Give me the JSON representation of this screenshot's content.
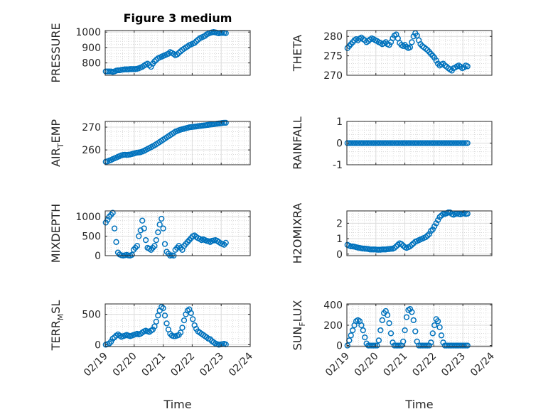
{
  "figure": {
    "title": "Figure 3 medium",
    "marker_color": "#0072BD",
    "x_ticks": [
      "02/19",
      "02/20",
      "02/21",
      "02/22",
      "02/23",
      "02/24"
    ],
    "xlabel": "Time"
  },
  "chart_data": [
    {
      "type": "scatter",
      "ylabel": "PRESSURE",
      "ylim": [
        720,
        1010
      ],
      "yticks": [
        800,
        900,
        1000
      ],
      "xlim": [
        0,
        5
      ],
      "grid": true,
      "title": "Figure 3 medium",
      "x": [
        0.02,
        0.08,
        0.14,
        0.2,
        0.26,
        0.32,
        0.38,
        0.44,
        0.5,
        0.56,
        0.62,
        0.68,
        0.74,
        0.8,
        0.86,
        0.92,
        0.98,
        1.04,
        1.1,
        1.16,
        1.22,
        1.28,
        1.34,
        1.4,
        1.46,
        1.52,
        1.58,
        1.64,
        1.7,
        1.76,
        1.82,
        1.88,
        1.94,
        2.0,
        2.06,
        2.12,
        2.18,
        2.24,
        2.3,
        2.36,
        2.42,
        2.48,
        2.54,
        2.6,
        2.66,
        2.72,
        2.78,
        2.84,
        2.9,
        2.96,
        3.02,
        3.08,
        3.14,
        3.2,
        3.26,
        3.32,
        3.38,
        3.44,
        3.5,
        3.56,
        3.62,
        3.68,
        3.74,
        3.8,
        3.86,
        3.92,
        3.98,
        4.04,
        4.1,
        4.16
      ],
      "y": [
        745,
        745,
        745,
        745,
        742,
        745,
        750,
        752,
        752,
        755,
        757,
        758,
        758,
        758,
        760,
        760,
        760,
        760,
        762,
        765,
        770,
        775,
        782,
        790,
        795,
        785,
        775,
        795,
        810,
        820,
        830,
        835,
        840,
        845,
        850,
        855,
        860,
        870,
        865,
        858,
        850,
        855,
        865,
        875,
        885,
        892,
        900,
        907,
        915,
        920,
        925,
        930,
        940,
        950,
        960,
        965,
        970,
        975,
        985,
        990,
        995,
        998,
        1000,
        998,
        995,
        992,
        995,
        995,
        995,
        993
      ]
    },
    {
      "type": "scatter",
      "ylabel": "THETA",
      "ylim": [
        270,
        281.5
      ],
      "yticks": [
        270,
        275,
        280
      ],
      "xlim": [
        0,
        5
      ],
      "grid": true,
      "x": [
        0.02,
        0.08,
        0.14,
        0.2,
        0.26,
        0.32,
        0.38,
        0.44,
        0.5,
        0.56,
        0.62,
        0.68,
        0.74,
        0.8,
        0.86,
        0.92,
        0.98,
        1.04,
        1.1,
        1.16,
        1.22,
        1.28,
        1.34,
        1.4,
        1.46,
        1.52,
        1.58,
        1.64,
        1.7,
        1.76,
        1.82,
        1.88,
        1.94,
        2.0,
        2.06,
        2.12,
        2.18,
        2.24,
        2.3,
        2.36,
        2.42,
        2.48,
        2.54,
        2.6,
        2.66,
        2.72,
        2.78,
        2.84,
        2.9,
        2.96,
        3.02,
        3.08,
        3.14,
        3.2,
        3.26,
        3.32,
        3.38,
        3.44,
        3.5,
        3.56,
        3.62,
        3.68,
        3.74,
        3.8,
        3.86,
        3.92,
        3.98,
        4.04,
        4.1,
        4.16
      ],
      "y": [
        277.0,
        277.5,
        278.0,
        278.5,
        279.0,
        279.3,
        279.0,
        279.4,
        279.7,
        279.3,
        279.0,
        278.5,
        278.8,
        279.2,
        279.5,
        279.3,
        279.0,
        278.8,
        278.5,
        278.3,
        278.0,
        278.2,
        278.5,
        278.0,
        277.8,
        278.5,
        279.5,
        280.2,
        280.5,
        279.5,
        278.3,
        277.8,
        277.5,
        277.8,
        277.3,
        277.0,
        277.2,
        278.5,
        280.0,
        280.8,
        280.2,
        279.0,
        278.0,
        277.5,
        277.2,
        276.8,
        276.5,
        276.0,
        275.5,
        275.0,
        274.5,
        273.8,
        273.0,
        272.5,
        272.8,
        273.0,
        272.5,
        272.2,
        271.8,
        271.5,
        271.2,
        271.8,
        272.0,
        272.3,
        272.5,
        272.2,
        271.8,
        272.0,
        272.5,
        272.3
      ]
    },
    {
      "type": "scatter",
      "ylabel": "AIR_TEMP",
      "ylim": [
        253.5,
        272.5
      ],
      "yticks": [
        260,
        270
      ],
      "xlim": [
        0,
        5
      ],
      "grid": true,
      "x": [
        0.02,
        0.08,
        0.14,
        0.2,
        0.26,
        0.32,
        0.38,
        0.44,
        0.5,
        0.56,
        0.62,
        0.68,
        0.74,
        0.8,
        0.86,
        0.92,
        0.98,
        1.04,
        1.1,
        1.16,
        1.22,
        1.28,
        1.34,
        1.4,
        1.46,
        1.52,
        1.58,
        1.64,
        1.7,
        1.76,
        1.82,
        1.88,
        1.94,
        2.0,
        2.06,
        2.12,
        2.18,
        2.24,
        2.3,
        2.36,
        2.42,
        2.48,
        2.54,
        2.6,
        2.66,
        2.72,
        2.78,
        2.84,
        2.9,
        2.96,
        3.02,
        3.08,
        3.14,
        3.2,
        3.26,
        3.32,
        3.38,
        3.44,
        3.5,
        3.56,
        3.62,
        3.68,
        3.74,
        3.8,
        3.86,
        3.92,
        3.98,
        4.04,
        4.1,
        4.16
      ],
      "y": [
        254.8,
        255.0,
        255.3,
        255.6,
        256.0,
        256.3,
        256.6,
        257.0,
        257.3,
        257.6,
        257.8,
        257.9,
        257.8,
        257.9,
        258.0,
        258.2,
        258.4,
        258.6,
        258.8,
        258.9,
        259.0,
        259.3,
        259.6,
        260.0,
        260.4,
        260.8,
        261.2,
        261.6,
        262.0,
        262.5,
        263.0,
        263.5,
        264.0,
        264.5,
        265.0,
        265.5,
        266.0,
        266.5,
        267.0,
        267.5,
        268.0,
        268.3,
        268.6,
        268.9,
        269.1,
        269.3,
        269.5,
        269.7,
        269.9,
        270.0,
        270.1,
        270.2,
        270.3,
        270.4,
        270.5,
        270.6,
        270.7,
        270.8,
        270.9,
        271.0,
        271.1,
        271.2,
        271.3,
        271.4,
        271.5,
        271.6,
        271.7,
        271.8,
        271.9,
        271.9
      ]
    },
    {
      "type": "scatter",
      "ylabel": "RAINFALL",
      "ylim": [
        -1,
        1
      ],
      "yticks": [
        -1,
        0,
        1
      ],
      "xlim": [
        0,
        5
      ],
      "grid": true,
      "x": [
        0.02,
        0.08,
        0.14,
        0.2,
        0.26,
        0.32,
        0.38,
        0.44,
        0.5,
        0.56,
        0.62,
        0.68,
        0.74,
        0.8,
        0.86,
        0.92,
        0.98,
        1.04,
        1.1,
        1.16,
        1.22,
        1.28,
        1.34,
        1.4,
        1.46,
        1.52,
        1.58,
        1.64,
        1.7,
        1.76,
        1.82,
        1.88,
        1.94,
        2.0,
        2.06,
        2.12,
        2.18,
        2.24,
        2.3,
        2.36,
        2.42,
        2.48,
        2.54,
        2.6,
        2.66,
        2.72,
        2.78,
        2.84,
        2.9,
        2.96,
        3.02,
        3.08,
        3.14,
        3.2,
        3.26,
        3.32,
        3.38,
        3.44,
        3.5,
        3.56,
        3.62,
        3.68,
        3.74,
        3.8,
        3.86,
        3.92,
        3.98,
        4.04,
        4.1,
        4.16
      ],
      "y": [
        0,
        0,
        0,
        0,
        0,
        0,
        0,
        0,
        0,
        0,
        0,
        0,
        0,
        0,
        0,
        0,
        0,
        0,
        0,
        0,
        0,
        0,
        0,
        0,
        0,
        0,
        0,
        0,
        0,
        0,
        0,
        0,
        0,
        0,
        0,
        0,
        0,
        0,
        0,
        0,
        0,
        0,
        0,
        0,
        0,
        0,
        0,
        0,
        0,
        0,
        0,
        0,
        0,
        0,
        0,
        0,
        0,
        0,
        0,
        0,
        0,
        0,
        0,
        0,
        0,
        0,
        0,
        0,
        0,
        0
      ]
    },
    {
      "type": "scatter",
      "ylabel": "MIXDEPTH",
      "ylim": [
        0,
        1150
      ],
      "yticks": [
        0,
        500,
        1000
      ],
      "xlim": [
        0,
        5
      ],
      "grid": true,
      "x": [
        0.02,
        0.08,
        0.14,
        0.2,
        0.26,
        0.32,
        0.38,
        0.44,
        0.5,
        0.56,
        0.62,
        0.68,
        0.74,
        0.8,
        0.86,
        0.92,
        0.98,
        1.04,
        1.1,
        1.16,
        1.22,
        1.28,
        1.34,
        1.4,
        1.46,
        1.52,
        1.58,
        1.64,
        1.7,
        1.76,
        1.82,
        1.88,
        1.94,
        2.0,
        2.06,
        2.12,
        2.18,
        2.24,
        2.3,
        2.36,
        2.42,
        2.48,
        2.54,
        2.6,
        2.66,
        2.72,
        2.78,
        2.84,
        2.9,
        2.96,
        3.02,
        3.08,
        3.14,
        3.2,
        3.26,
        3.32,
        3.38,
        3.44,
        3.5,
        3.56,
        3.62,
        3.68,
        3.74,
        3.8,
        3.86,
        3.92,
        3.98,
        4.04,
        4.1,
        4.16
      ],
      "y": [
        850,
        920,
        1000,
        1050,
        1100,
        700,
        350,
        80,
        30,
        10,
        0,
        10,
        20,
        5,
        0,
        20,
        150,
        200,
        250,
        500,
        650,
        900,
        700,
        400,
        200,
        180,
        150,
        200,
        250,
        400,
        600,
        800,
        950,
        700,
        300,
        100,
        50,
        0,
        10,
        0,
        150,
        200,
        250,
        200,
        150,
        250,
        300,
        350,
        400,
        450,
        500,
        520,
        480,
        450,
        430,
        400,
        420,
        400,
        380,
        370,
        350,
        380,
        390,
        400,
        380,
        350,
        320,
        300,
        280,
        330
      ]
    },
    {
      "type": "scatter",
      "ylabel": "H2OMIXRA",
      "ylim": [
        -0.1,
        2.8
      ],
      "yticks": [
        0,
        1,
        2
      ],
      "xlim": [
        0,
        5
      ],
      "grid": true,
      "x": [
        0.02,
        0.08,
        0.14,
        0.2,
        0.26,
        0.32,
        0.38,
        0.44,
        0.5,
        0.56,
        0.62,
        0.68,
        0.74,
        0.8,
        0.86,
        0.92,
        0.98,
        1.04,
        1.1,
        1.16,
        1.22,
        1.28,
        1.34,
        1.4,
        1.46,
        1.52,
        1.58,
        1.64,
        1.7,
        1.76,
        1.82,
        1.88,
        1.94,
        2.0,
        2.06,
        2.12,
        2.18,
        2.24,
        2.3,
        2.36,
        2.42,
        2.48,
        2.54,
        2.6,
        2.66,
        2.72,
        2.78,
        2.84,
        2.9,
        2.96,
        3.02,
        3.08,
        3.14,
        3.2,
        3.26,
        3.32,
        3.38,
        3.44,
        3.5,
        3.56,
        3.62,
        3.68,
        3.74,
        3.8,
        3.86,
        3.92,
        3.98,
        4.04,
        4.1,
        4.16
      ],
      "y": [
        0.6,
        0.55,
        0.5,
        0.5,
        0.48,
        0.45,
        0.42,
        0.4,
        0.38,
        0.36,
        0.35,
        0.34,
        0.33,
        0.3,
        0.3,
        0.3,
        0.3,
        0.28,
        0.28,
        0.28,
        0.3,
        0.3,
        0.3,
        0.32,
        0.33,
        0.34,
        0.35,
        0.4,
        0.5,
        0.6,
        0.7,
        0.65,
        0.55,
        0.45,
        0.4,
        0.45,
        0.5,
        0.6,
        0.7,
        0.8,
        0.85,
        0.9,
        0.95,
        1.0,
        1.05,
        1.1,
        1.2,
        1.3,
        1.5,
        1.6,
        1.8,
        2.0,
        2.2,
        2.4,
        2.5,
        2.6,
        2.6,
        2.65,
        2.7,
        2.7,
        2.6,
        2.55,
        2.6,
        2.62,
        2.6,
        2.58,
        2.62,
        2.65,
        2.6,
        2.62
      ]
    },
    {
      "type": "scatter",
      "ylabel": "TERR_MSL",
      "ylim": [
        -30,
        670
      ],
      "yticks": [
        0,
        500
      ],
      "xlim": [
        0,
        5
      ],
      "grid": true,
      "x": [
        0.02,
        0.08,
        0.14,
        0.2,
        0.26,
        0.32,
        0.38,
        0.44,
        0.5,
        0.56,
        0.62,
        0.68,
        0.74,
        0.8,
        0.86,
        0.92,
        0.98,
        1.04,
        1.1,
        1.16,
        1.22,
        1.28,
        1.34,
        1.4,
        1.46,
        1.52,
        1.58,
        1.64,
        1.7,
        1.76,
        1.82,
        1.88,
        1.94,
        2.0,
        2.06,
        2.12,
        2.18,
        2.24,
        2.3,
        2.36,
        2.42,
        2.48,
        2.54,
        2.6,
        2.66,
        2.72,
        2.78,
        2.84,
        2.9,
        2.96,
        3.02,
        3.08,
        3.14,
        3.2,
        3.26,
        3.32,
        3.38,
        3.44,
        3.5,
        3.56,
        3.62,
        3.68,
        3.74,
        3.8,
        3.86,
        3.92,
        3.98,
        4.04,
        4.1,
        4.16
      ],
      "y": [
        0,
        10,
        20,
        50,
        100,
        120,
        150,
        170,
        150,
        130,
        140,
        150,
        160,
        150,
        140,
        150,
        160,
        170,
        180,
        170,
        180,
        200,
        220,
        230,
        220,
        210,
        230,
        250,
        300,
        380,
        480,
        560,
        620,
        600,
        480,
        350,
        250,
        180,
        150,
        140,
        140,
        150,
        160,
        200,
        280,
        400,
        500,
        560,
        580,
        520,
        420,
        320,
        260,
        220,
        200,
        180,
        160,
        140,
        120,
        100,
        90,
        60,
        40,
        20,
        10,
        0,
        5,
        10,
        15,
        5
      ]
    },
    {
      "type": "scatter",
      "ylabel": "SUN_FLUX",
      "ylim": [
        -10,
        410
      ],
      "yticks": [
        0,
        200,
        400
      ],
      "xlim": [
        0,
        5
      ],
      "grid": true,
      "x": [
        0.02,
        0.08,
        0.14,
        0.2,
        0.26,
        0.32,
        0.38,
        0.44,
        0.5,
        0.56,
        0.62,
        0.68,
        0.74,
        0.8,
        0.86,
        0.92,
        0.98,
        1.04,
        1.1,
        1.16,
        1.22,
        1.28,
        1.34,
        1.4,
        1.46,
        1.52,
        1.58,
        1.64,
        1.7,
        1.76,
        1.82,
        1.88,
        1.94,
        2.0,
        2.06,
        2.12,
        2.18,
        2.24,
        2.3,
        2.36,
        2.42,
        2.48,
        2.54,
        2.6,
        2.66,
        2.72,
        2.78,
        2.84,
        2.9,
        2.96,
        3.02,
        3.08,
        3.14,
        3.2,
        3.26,
        3.32,
        3.38,
        3.44,
        3.5,
        3.56,
        3.62,
        3.68,
        3.74,
        3.8,
        3.86,
        3.92,
        3.98,
        4.04,
        4.1,
        4.16
      ],
      "y": [
        0,
        50,
        100,
        150,
        200,
        240,
        250,
        240,
        200,
        150,
        80,
        20,
        0,
        0,
        0,
        0,
        0,
        0,
        50,
        150,
        250,
        320,
        340,
        300,
        220,
        120,
        30,
        0,
        0,
        0,
        0,
        0,
        40,
        150,
        280,
        350,
        360,
        330,
        250,
        140,
        40,
        0,
        0,
        0,
        0,
        0,
        0,
        0,
        30,
        120,
        200,
        260,
        240,
        180,
        100,
        30,
        0,
        0,
        0,
        0,
        0,
        0,
        0,
        0,
        0,
        0,
        0,
        0,
        0,
        0
      ]
    }
  ]
}
